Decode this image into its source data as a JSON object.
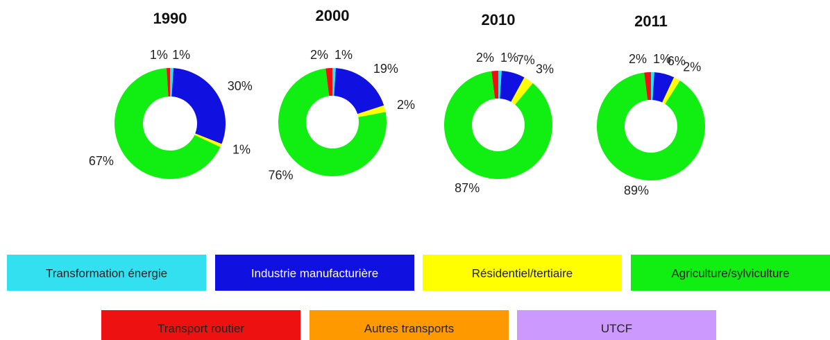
{
  "chart_data": [
    {
      "type": "donut",
      "title": "1990",
      "categories": [
        "Transformation énergie",
        "Industrie manufacturière",
        "Résidentiel/tertiaire",
        "Agriculture/sylviculture",
        "Transport routier"
      ],
      "colors": [
        "#33e0f0",
        "#1010e0",
        "#ffff00",
        "#11ee11",
        "#ee1111"
      ],
      "values": [
        1,
        30,
        1,
        67,
        1
      ],
      "value_labels": [
        "1%",
        "30%",
        "1%",
        "67%",
        "1%"
      ]
    },
    {
      "type": "donut",
      "title": "2000",
      "categories": [
        "Transformation énergie",
        "Industrie manufacturière",
        "Résidentiel/tertiaire",
        "Agriculture/sylviculture",
        "Transport routier"
      ],
      "colors": [
        "#33e0f0",
        "#1010e0",
        "#ffff00",
        "#11ee11",
        "#ee1111"
      ],
      "values": [
        1,
        19,
        2,
        76,
        2
      ],
      "value_labels": [
        "1%",
        "19%",
        "2%",
        "76%",
        "2%"
      ]
    },
    {
      "type": "donut",
      "title": "2010",
      "categories": [
        "Transformation énergie",
        "Industrie manufacturière",
        "Résidentiel/tertiaire",
        "Agriculture/sylviculture",
        "Transport routier"
      ],
      "colors": [
        "#33e0f0",
        "#1010e0",
        "#ffff00",
        "#11ee11",
        "#ee1111"
      ],
      "values": [
        1,
        7,
        3,
        87,
        2
      ],
      "value_labels": [
        "1%",
        "7%",
        "3%",
        "87%",
        "2%"
      ]
    },
    {
      "type": "donut",
      "title": "2011",
      "categories": [
        "Transformation énergie",
        "Industrie manufacturière",
        "Résidentiel/tertiaire",
        "Agriculture/sylviculture",
        "Transport routier"
      ],
      "colors": [
        "#33e0f0",
        "#1010e0",
        "#ffff00",
        "#11ee11",
        "#ee1111"
      ],
      "values": [
        1,
        6,
        2,
        89,
        2
      ],
      "value_labels": [
        "1%",
        "6%",
        "2%",
        "89%",
        "2%"
      ]
    }
  ],
  "legend": {
    "items": [
      {
        "name": "Transformation énergie",
        "color": "#33e0f0",
        "text_color": "#222222"
      },
      {
        "name": "Industrie manufacturière",
        "color": "#1010e0",
        "text_color": "#ffffff"
      },
      {
        "name": "Résidentiel/tertiaire",
        "color": "#ffff00",
        "text_color": "#222222"
      },
      {
        "name": "Agriculture/sylviculture",
        "color": "#11ee11",
        "text_color": "#222222"
      },
      {
        "name": "Transport routier",
        "color": "#ee1111",
        "text_color": "#222222"
      },
      {
        "name": "Autres transports",
        "color": "#ff9900",
        "text_color": "#222222"
      },
      {
        "name": "UTCF",
        "color": "#cc99ff",
        "text_color": "#222222"
      }
    ]
  }
}
